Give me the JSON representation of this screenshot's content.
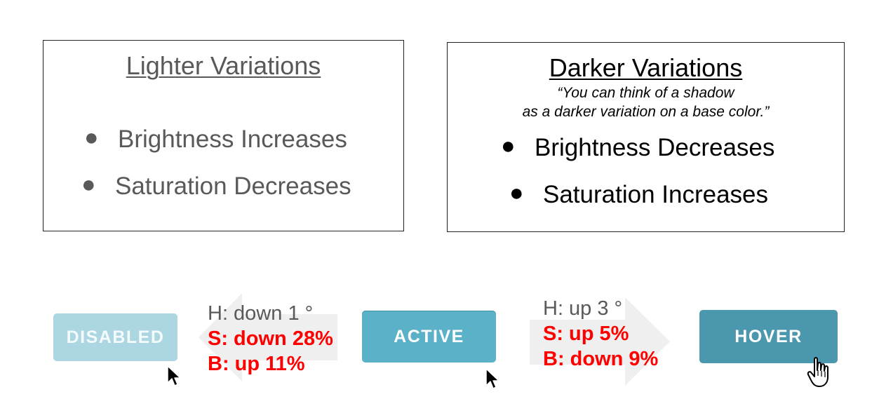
{
  "lighter": {
    "title": "Lighter Variations",
    "bullets": [
      "Brightness Increases",
      "Saturation Decreases"
    ]
  },
  "darker": {
    "title": "Darker Variations",
    "quote_line1": "“You can think of a shadow",
    "quote_line2": "as a darker variation on a base color.”",
    "bullets": [
      "Brightness Decreases",
      "Saturation Increases"
    ]
  },
  "buttons": {
    "disabled": "DISABLED",
    "active": "ACTIVE",
    "hover": "HOVER"
  },
  "to_disabled": {
    "h": "H: down 1 °",
    "s": "S: down 28%",
    "b": "B: up 11%"
  },
  "to_hover": {
    "h": "H: up 3 °",
    "s": "S: up 5%",
    "b": "B: down 9%"
  },
  "colors": {
    "disabled_fill": "#abd6e2",
    "active_fill": "#5bb1c8",
    "hover_fill": "#4a97ae",
    "change_text": "#ff0000"
  },
  "icons": {
    "bullet": "bullet-dot",
    "arrow_left": "arrow-left-icon",
    "arrow_right": "arrow-right-icon",
    "cursor_pointer": "mouse-pointer-icon",
    "cursor_hand": "hand-cursor-icon"
  }
}
